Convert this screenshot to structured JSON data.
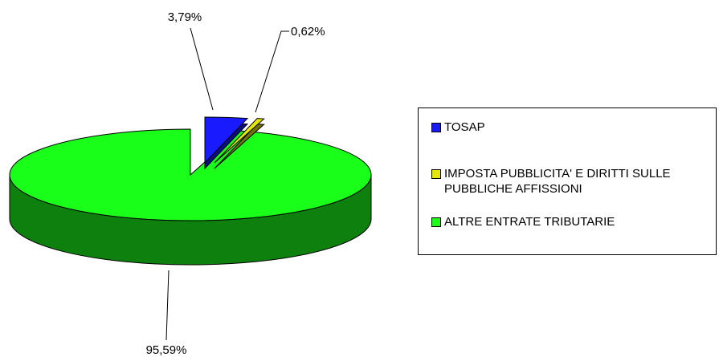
{
  "chart_data": {
    "type": "pie",
    "categories": [
      "TOSAP",
      "IMPOSTA PUBBLICITA' E DIRITTI SULLE PUBBLICHE AFFISSIONI",
      "ALTRE ENTRATE TRIBUTARIE"
    ],
    "values": [
      3.79,
      0.62,
      95.59
    ],
    "value_labels": [
      "3,79%",
      "0,62%",
      "95,59%"
    ],
    "colors": [
      "#1a1aff",
      "#e6e600",
      "#1aff1a"
    ],
    "legend": "right"
  }
}
